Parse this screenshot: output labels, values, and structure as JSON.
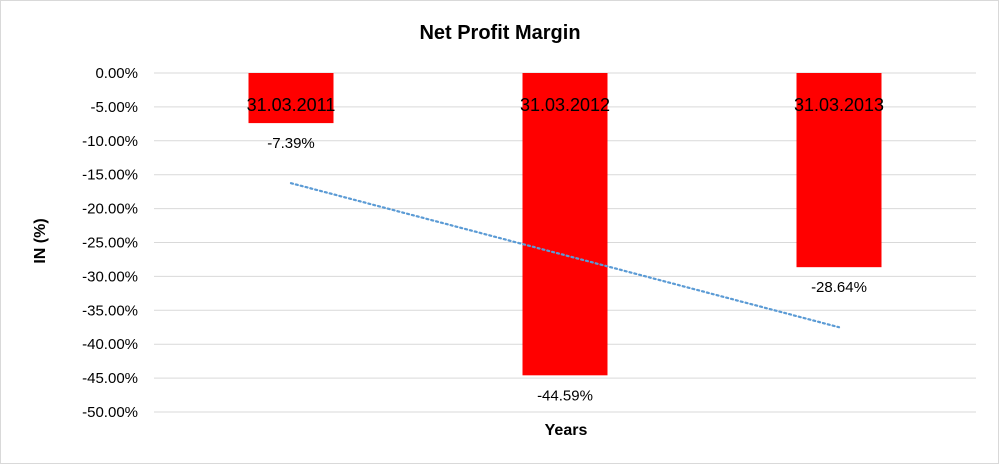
{
  "chart_data": {
    "type": "bar",
    "title": "Net Profit Margin",
    "xlabel": "Years",
    "ylabel": "IN (%)",
    "categories": [
      "31.03.2011",
      "31.03.2012",
      "31.03.2013"
    ],
    "series": [
      {
        "values": [
          -7.39,
          -44.59,
          -28.64
        ],
        "data_labels": [
          "-7.39%",
          "-44.59%",
          "-28.64%"
        ]
      }
    ],
    "ylim": [
      -50,
      0
    ],
    "y_ticks": [
      0,
      -5,
      -10,
      -15,
      -20,
      -25,
      -30,
      -35,
      -40,
      -45,
      -50
    ],
    "y_tick_labels": [
      "0.00%",
      "-5.00%",
      "-10.00%",
      "-15.00%",
      "-20.00%",
      "-25.00%",
      "-30.00%",
      "-35.00%",
      "-40.00%",
      "-45.00%",
      "-50.00%"
    ],
    "trendline": {
      "type": "linear",
      "style": "dotted"
    },
    "grid": true,
    "legend": "none",
    "colors": {
      "bar": "#ff0000",
      "trendline": "#5b9bd5",
      "grid": "#d9d9d9"
    }
  }
}
